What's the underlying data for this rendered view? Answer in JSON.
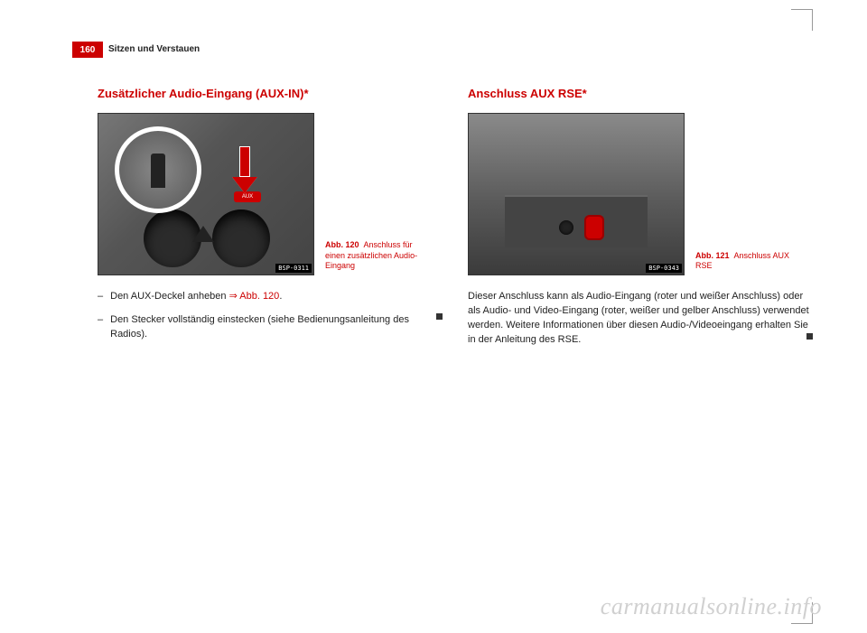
{
  "page_number": "160",
  "running_head": "Sitzen und Verstauen",
  "left": {
    "heading": "Zusätzlicher Audio-Eingang (AUX-IN)*",
    "fig": {
      "caption_strong": "Abb. 120",
      "caption_rest": "Anschluss für einen zusätzlichen Audio-Eingang",
      "bsp": "BSP-0311",
      "aux_label": "AUX"
    },
    "bullets": [
      {
        "pre": "Den AUX-Deckel anheben ",
        "link": "⇒ Abb. 120",
        "post": "."
      },
      {
        "pre": "Den Stecker vollständig einstecken (siehe Bedienungsanleitung des Radios).",
        "link": "",
        "post": ""
      }
    ]
  },
  "right": {
    "heading": "Anschluss AUX RSE*",
    "fig": {
      "caption_strong": "Abb. 121",
      "caption_rest": "Anschluss AUX RSE",
      "bsp": "BSP-0343"
    },
    "para": "Dieser Anschluss kann als Audio-Eingang (roter und weißer Anschluss) oder als Audio- und Video-Eingang (roter, weißer und gelber Anschluss) verwendet werden. Weitere Informationen über diesen Audio-/Videoeingang erhalten Sie in der Anleitung des RSE."
  },
  "watermark": "carmanualsonline.info",
  "colors": {
    "accent": "#c00",
    "text": "#222",
    "wm": "#d0d0d0"
  }
}
